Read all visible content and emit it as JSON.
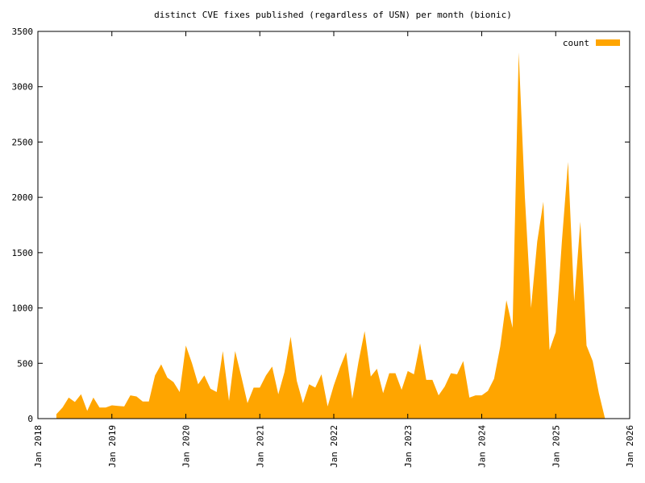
{
  "chart_data": {
    "type": "area",
    "title": "distinct CVE fixes published (regardless of USN) per month (bionic)",
    "x": [
      "2018-04",
      "2018-05",
      "2018-06",
      "2018-07",
      "2018-08",
      "2018-09",
      "2018-10",
      "2018-11",
      "2018-12",
      "2019-01",
      "2019-02",
      "2019-03",
      "2019-04",
      "2019-05",
      "2019-06",
      "2019-07",
      "2019-08",
      "2019-09",
      "2019-10",
      "2019-11",
      "2019-12",
      "2020-01",
      "2020-02",
      "2020-03",
      "2020-04",
      "2020-05",
      "2020-06",
      "2020-07",
      "2020-08",
      "2020-09",
      "2020-10",
      "2020-11",
      "2020-12",
      "2021-01",
      "2021-02",
      "2021-03",
      "2021-04",
      "2021-05",
      "2021-06",
      "2021-07",
      "2021-08",
      "2021-09",
      "2021-10",
      "2021-11",
      "2021-12",
      "2022-01",
      "2022-02",
      "2022-03",
      "2022-04",
      "2022-05",
      "2022-06",
      "2022-07",
      "2022-08",
      "2022-09",
      "2022-10",
      "2022-11",
      "2022-12",
      "2023-01",
      "2023-02",
      "2023-03",
      "2023-04",
      "2023-05",
      "2023-06",
      "2023-07",
      "2023-08",
      "2023-09",
      "2023-10",
      "2023-11",
      "2023-12",
      "2024-01",
      "2024-02",
      "2024-03",
      "2024-04",
      "2024-05",
      "2024-06",
      "2024-07",
      "2024-08",
      "2024-09",
      "2024-10",
      "2024-11",
      "2024-12",
      "2025-01",
      "2025-02",
      "2025-03",
      "2025-04",
      "2025-05",
      "2025-06",
      "2025-07",
      "2025-08",
      "2025-09"
    ],
    "series": [
      {
        "name": "count",
        "color": "#ffa500",
        "values": [
          40,
          100,
          190,
          150,
          220,
          70,
          190,
          100,
          100,
          120,
          115,
          110,
          210,
          200,
          155,
          155,
          390,
          490,
          370,
          330,
          240,
          660,
          500,
          310,
          390,
          270,
          240,
          610,
          160,
          610,
          380,
          140,
          280,
          280,
          390,
          470,
          220,
          420,
          740,
          340,
          140,
          310,
          280,
          400,
          110,
          300,
          460,
          600,
          180,
          510,
          790,
          380,
          450,
          230,
          410,
          410,
          260,
          430,
          400,
          680,
          350,
          350,
          210,
          290,
          410,
          400,
          520,
          190,
          210,
          210,
          250,
          360,
          650,
          1070,
          820,
          3310,
          2000,
          1000,
          1600,
          1960,
          620,
          780,
          1600,
          2320,
          1060,
          1780,
          660,
          520,
          230,
          0
        ]
      }
    ],
    "xlim": [
      "2018-01",
      "2026-01"
    ],
    "xticks": [
      {
        "value": "2018-01",
        "label": "Jan 2018"
      },
      {
        "value": "2019-01",
        "label": "Jan 2019"
      },
      {
        "value": "2020-01",
        "label": "Jan 2020"
      },
      {
        "value": "2021-01",
        "label": "Jan 2021"
      },
      {
        "value": "2022-01",
        "label": "Jan 2022"
      },
      {
        "value": "2023-01",
        "label": "Jan 2023"
      },
      {
        "value": "2024-01",
        "label": "Jan 2024"
      },
      {
        "value": "2025-01",
        "label": "Jan 2025"
      },
      {
        "value": "2026-01",
        "label": "Jan 2026"
      }
    ],
    "ylim": [
      0,
      3500
    ],
    "yticks": [
      0,
      500,
      1000,
      1500,
      2000,
      2500,
      3000,
      3500
    ],
    "legend": "top-right"
  }
}
